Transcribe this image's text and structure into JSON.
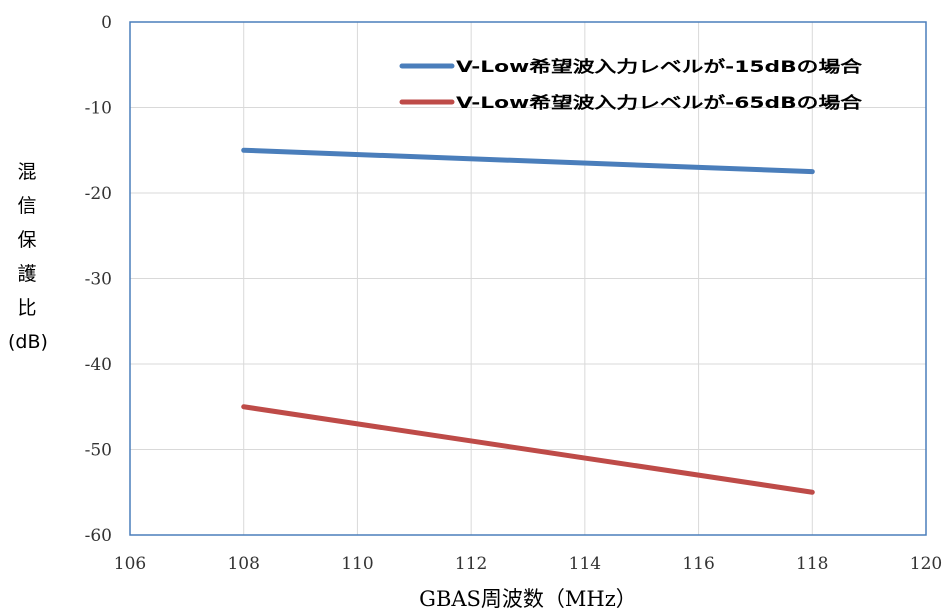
{
  "chart_data": {
    "type": "line",
    "title": "",
    "xlabel": "GBAS周波数（MHz）",
    "ylabel_chars": [
      "混",
      "信",
      "保",
      "護",
      "比"
    ],
    "ylabel_unit": "(dB)",
    "xlim": [
      106,
      120
    ],
    "ylim": [
      -60,
      0
    ],
    "xticks": [
      106,
      108,
      110,
      112,
      114,
      116,
      118,
      120
    ],
    "yticks": [
      0,
      -10,
      -20,
      -30,
      -40,
      -50,
      -60
    ],
    "grid": true,
    "legend_position": "top-right",
    "series": [
      {
        "name": "V-Low希望波入力レベルが-15dBの場合",
        "color": "#4a7ebb",
        "x": [
          108,
          118
        ],
        "y": [
          -15,
          -17.5
        ]
      },
      {
        "name": "V-Low希望波入力レベルが-65dBの場合",
        "color": "#be4b48",
        "x": [
          108,
          118
        ],
        "y": [
          -45,
          -55
        ]
      }
    ]
  },
  "colors": {
    "axis": "#4a7ebb",
    "grid": "#d9d9d9",
    "tick_text": "#333333"
  }
}
